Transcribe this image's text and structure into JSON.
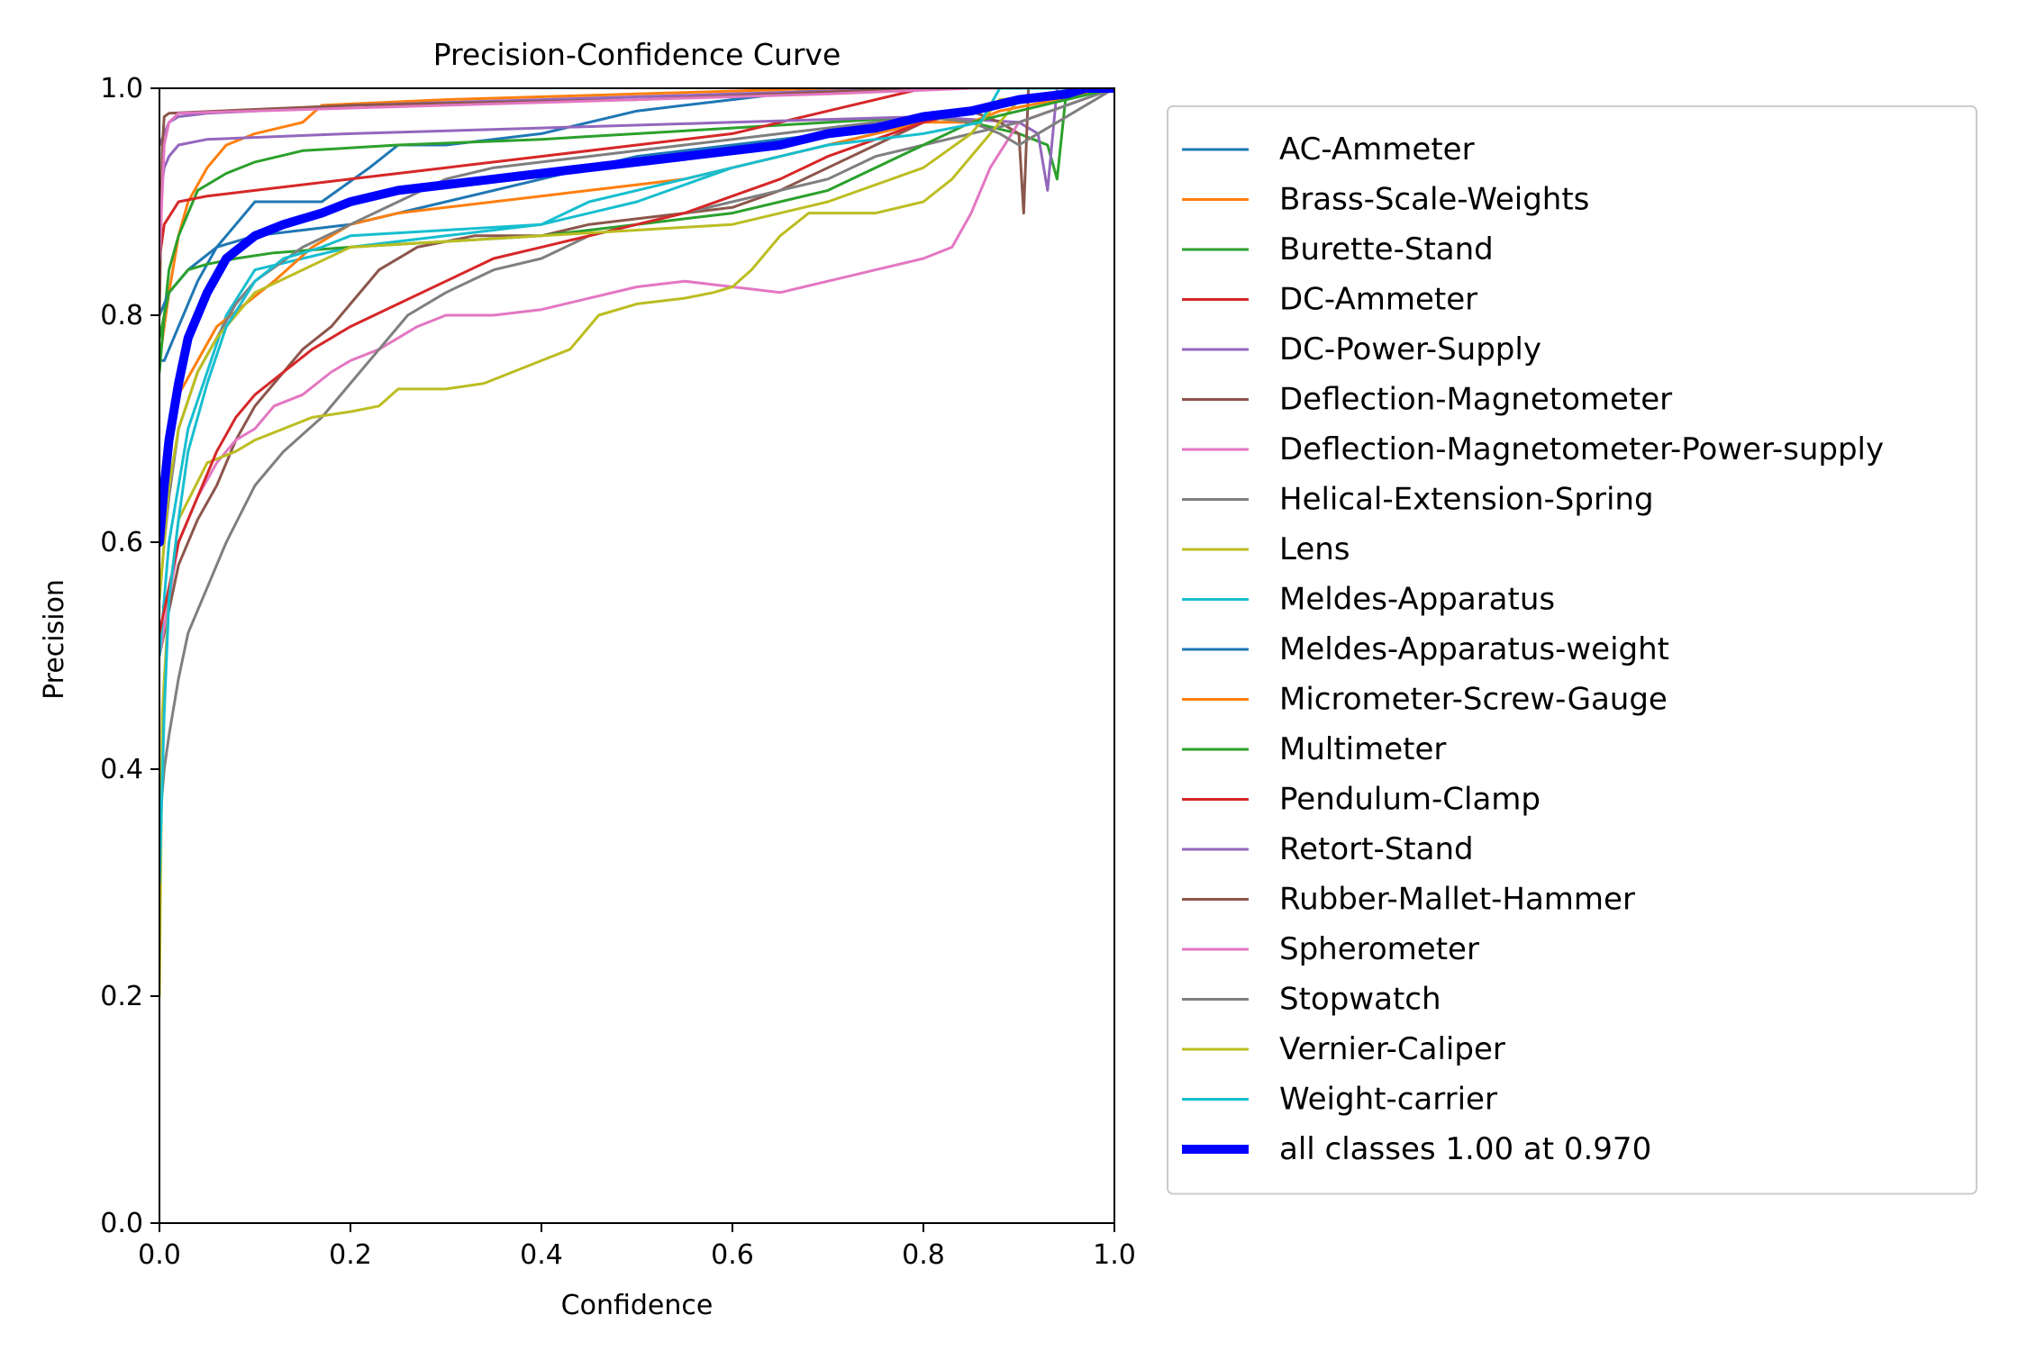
{
  "chart_data": {
    "type": "line",
    "title": "Precision-Confidence Curve",
    "xlabel": "Confidence",
    "ylabel": "Precision",
    "xlim": [
      0,
      1
    ],
    "ylim": [
      0,
      1
    ],
    "xticks": [
      0.0,
      0.2,
      0.4,
      0.6,
      0.8,
      1.0
    ],
    "yticks": [
      0.0,
      0.2,
      0.4,
      0.6,
      0.8,
      1.0
    ],
    "tick_labels_x": [
      "0.0",
      "0.2",
      "0.4",
      "0.6",
      "0.8",
      "1.0"
    ],
    "tick_labels_y": [
      "0.0",
      "0.2",
      "0.4",
      "0.6",
      "0.8",
      "1.0"
    ],
    "grid": false,
    "legend_position": "outside-right",
    "series": [
      {
        "name": "AC-Ammeter",
        "color": "#1f77b4",
        "width": 1.5,
        "x": [
          0,
          0.005,
          0.02,
          0.04,
          0.06,
          0.08,
          0.1,
          0.12,
          0.17,
          0.22,
          0.25,
          0.3,
          0.4,
          0.5,
          0.6,
          0.7,
          0.8,
          0.9,
          1.0
        ],
        "y": [
          0.76,
          0.76,
          0.79,
          0.83,
          0.86,
          0.88,
          0.9,
          0.9,
          0.9,
          0.93,
          0.95,
          0.95,
          0.96,
          0.98,
          0.99,
          1.0,
          1.0,
          1.0,
          1.0
        ]
      },
      {
        "name": "Brass-Scale-Weights",
        "color": "#ff7f0e",
        "width": 1.5,
        "x": [
          0,
          0.01,
          0.02,
          0.03,
          0.05,
          0.07,
          0.1,
          0.15,
          0.17,
          0.3,
          0.5,
          0.7,
          0.8,
          0.9,
          1.0
        ],
        "y": [
          0.76,
          0.82,
          0.87,
          0.9,
          0.93,
          0.95,
          0.96,
          0.97,
          0.985,
          0.99,
          0.995,
          1.0,
          1.0,
          1.0,
          1.0
        ]
      },
      {
        "name": "Burette-Stand",
        "color": "#2ca02c",
        "width": 1.5,
        "x": [
          0,
          0.005,
          0.01,
          0.02,
          0.04,
          0.07,
          0.1,
          0.15,
          0.25,
          0.4,
          0.6,
          0.8,
          0.85,
          0.9,
          0.93,
          0.94,
          0.95,
          1.0
        ],
        "y": [
          0.75,
          0.8,
          0.84,
          0.87,
          0.91,
          0.925,
          0.935,
          0.945,
          0.95,
          0.955,
          0.965,
          0.975,
          0.97,
          0.96,
          0.95,
          0.92,
          1.0,
          1.0
        ]
      },
      {
        "name": "DC-Ammeter",
        "color": "#d62728",
        "width": 1.5,
        "x": [
          0,
          0.005,
          0.02,
          0.05,
          0.1,
          0.2,
          0.3,
          0.4,
          0.5,
          0.6,
          0.7,
          0.8,
          0.9,
          1.0
        ],
        "y": [
          0.85,
          0.88,
          0.9,
          0.905,
          0.91,
          0.92,
          0.93,
          0.94,
          0.95,
          0.96,
          0.98,
          1.0,
          1.0,
          1.0
        ]
      },
      {
        "name": "DC-Power-Supply",
        "color": "#9467bd",
        "width": 1.5,
        "x": [
          0,
          0.005,
          0.01,
          0.02,
          0.05,
          0.2,
          0.4,
          0.6,
          0.8,
          0.9,
          0.92,
          0.93,
          0.94,
          1.0
        ],
        "y": [
          0.9,
          0.93,
          0.94,
          0.95,
          0.955,
          0.96,
          0.965,
          0.97,
          0.975,
          0.97,
          0.96,
          0.91,
          1.0,
          1.0
        ]
      },
      {
        "name": "Deflection-Magnetometer",
        "color": "#8c564b",
        "width": 1.5,
        "x": [
          0,
          0.01,
          0.02,
          0.04,
          0.06,
          0.08,
          0.1,
          0.12,
          0.15,
          0.18,
          0.2,
          0.23,
          0.27,
          0.3,
          0.33,
          0.36,
          0.4,
          0.45,
          0.5,
          0.55,
          0.6,
          0.65,
          0.7,
          0.75,
          0.8,
          0.85,
          0.88,
          0.9,
          0.905,
          0.91,
          1.0
        ],
        "y": [
          0.5,
          0.54,
          0.58,
          0.62,
          0.65,
          0.69,
          0.72,
          0.74,
          0.77,
          0.79,
          0.81,
          0.84,
          0.86,
          0.865,
          0.87,
          0.87,
          0.87,
          0.88,
          0.885,
          0.89,
          0.895,
          0.91,
          0.93,
          0.95,
          0.97,
          0.98,
          0.97,
          0.96,
          0.89,
          1.0,
          1.0
        ]
      },
      {
        "name": "Deflection-Magnetometer-Power-supply",
        "color": "#e377c2",
        "width": 1.5,
        "x": [
          0,
          0.01,
          0.02,
          0.04,
          0.06,
          0.08,
          0.1,
          0.12,
          0.15,
          0.18,
          0.2,
          0.23,
          0.27,
          0.3,
          0.35,
          0.4,
          0.45,
          0.5,
          0.55,
          0.6,
          0.65,
          0.7,
          0.75,
          0.8,
          0.83,
          0.85,
          0.87,
          0.9,
          1.0
        ],
        "y": [
          0.5,
          0.55,
          0.6,
          0.64,
          0.67,
          0.69,
          0.7,
          0.72,
          0.73,
          0.75,
          0.76,
          0.77,
          0.79,
          0.8,
          0.8,
          0.805,
          0.815,
          0.825,
          0.83,
          0.825,
          0.82,
          0.83,
          0.84,
          0.85,
          0.86,
          0.89,
          0.93,
          0.97,
          1.0
        ]
      },
      {
        "name": "Helical-Extension-Spring",
        "color": "#7f7f7f",
        "width": 1.5,
        "x": [
          0,
          0.005,
          0.01,
          0.02,
          0.03,
          0.05,
          0.07,
          0.1,
          0.13,
          0.17,
          0.2,
          0.23,
          0.26,
          0.3,
          0.35,
          0.4,
          0.45,
          0.5,
          0.55,
          0.6,
          0.65,
          0.7,
          0.75,
          0.8,
          0.85,
          0.9,
          1.0
        ],
        "y": [
          0.35,
          0.4,
          0.43,
          0.48,
          0.52,
          0.56,
          0.6,
          0.65,
          0.68,
          0.71,
          0.74,
          0.77,
          0.8,
          0.82,
          0.84,
          0.85,
          0.87,
          0.88,
          0.89,
          0.9,
          0.91,
          0.92,
          0.94,
          0.95,
          0.96,
          0.97,
          1.0
        ]
      },
      {
        "name": "Lens",
        "color": "#bcbd22",
        "width": 1.5,
        "x": [
          0,
          0.003,
          0.01,
          0.02,
          0.05,
          0.08,
          0.1,
          0.13,
          0.16,
          0.2,
          0.23,
          0.25,
          0.3,
          0.34,
          0.37,
          0.4,
          0.43,
          0.46,
          0.5,
          0.55,
          0.58,
          0.6,
          0.62,
          0.65,
          0.68,
          0.72,
          0.75,
          0.8,
          0.83,
          0.86,
          0.88,
          0.9,
          1.0
        ],
        "y": [
          0.2,
          0.45,
          0.55,
          0.62,
          0.67,
          0.68,
          0.69,
          0.7,
          0.71,
          0.715,
          0.72,
          0.735,
          0.735,
          0.74,
          0.75,
          0.76,
          0.77,
          0.8,
          0.81,
          0.815,
          0.82,
          0.825,
          0.84,
          0.87,
          0.89,
          0.89,
          0.89,
          0.9,
          0.92,
          0.95,
          0.97,
          0.99,
          1.0
        ]
      },
      {
        "name": "Meldes-Apparatus",
        "color": "#17becf",
        "width": 1.5,
        "x": [
          0,
          0.005,
          0.01,
          0.02,
          0.03,
          0.05,
          0.07,
          0.1,
          0.15,
          0.2,
          0.3,
          0.4,
          0.5,
          0.6,
          0.7,
          0.8,
          0.9,
          1.0
        ],
        "y": [
          0.5,
          0.55,
          0.6,
          0.65,
          0.7,
          0.75,
          0.8,
          0.84,
          0.85,
          0.86,
          0.87,
          0.88,
          0.9,
          0.93,
          0.95,
          0.97,
          0.99,
          1.0
        ]
      },
      {
        "name": "Meldes-Apparatus-weight",
        "color": "#1f77b4",
        "width": 1.5,
        "x": [
          0,
          0.01,
          0.03,
          0.06,
          0.1,
          0.2,
          0.3,
          0.4,
          0.5,
          0.6,
          0.7,
          0.8,
          0.9,
          1.0
        ],
        "y": [
          0.8,
          0.82,
          0.84,
          0.86,
          0.87,
          0.88,
          0.9,
          0.92,
          0.94,
          0.95,
          0.96,
          0.97,
          0.99,
          1.0
        ]
      },
      {
        "name": "Micrometer-Screw-Gauge",
        "color": "#ff7f0e",
        "width": 1.5,
        "x": [
          0,
          0.005,
          0.01,
          0.02,
          0.04,
          0.06,
          0.09,
          0.12,
          0.16,
          0.2,
          0.25,
          0.3,
          0.35,
          0.4,
          0.45,
          0.5,
          0.55,
          0.6,
          0.65,
          0.7,
          0.75,
          0.8,
          0.85,
          0.88,
          1.0
        ],
        "y": [
          0.6,
          0.65,
          0.7,
          0.73,
          0.76,
          0.79,
          0.81,
          0.83,
          0.86,
          0.88,
          0.89,
          0.895,
          0.9,
          0.905,
          0.91,
          0.915,
          0.92,
          0.93,
          0.94,
          0.95,
          0.96,
          0.97,
          0.97,
          0.98,
          1.0
        ]
      },
      {
        "name": "Multimeter",
        "color": "#2ca02c",
        "width": 1.5,
        "x": [
          0,
          0.005,
          0.01,
          0.02,
          0.03,
          0.05,
          0.08,
          0.12,
          0.2,
          0.3,
          0.4,
          0.5,
          0.6,
          0.7,
          0.8,
          0.85,
          0.9,
          1.0
        ],
        "y": [
          0.78,
          0.8,
          0.82,
          0.83,
          0.84,
          0.845,
          0.85,
          0.855,
          0.86,
          0.865,
          0.87,
          0.88,
          0.89,
          0.91,
          0.95,
          0.97,
          0.98,
          1.0
        ]
      },
      {
        "name": "Pendulum-Clamp",
        "color": "#d62728",
        "width": 1.5,
        "x": [
          0,
          0.01,
          0.02,
          0.04,
          0.06,
          0.08,
          0.1,
          0.13,
          0.16,
          0.2,
          0.25,
          0.3,
          0.35,
          0.4,
          0.45,
          0.5,
          0.55,
          0.6,
          0.65,
          0.7,
          0.75,
          0.8,
          0.85,
          0.9,
          1.0
        ],
        "y": [
          0.52,
          0.56,
          0.6,
          0.64,
          0.68,
          0.71,
          0.73,
          0.75,
          0.77,
          0.79,
          0.81,
          0.83,
          0.85,
          0.86,
          0.87,
          0.88,
          0.89,
          0.905,
          0.92,
          0.94,
          0.955,
          0.97,
          0.98,
          0.99,
          1.0
        ]
      },
      {
        "name": "Retort-Stand",
        "color": "#9467bd",
        "width": 1.5,
        "x": [
          0,
          0.005,
          0.01,
          0.02,
          0.05,
          0.1,
          0.2,
          0.4,
          0.6,
          0.8,
          1.0
        ],
        "y": [
          0.95,
          0.96,
          0.97,
          0.975,
          0.978,
          0.98,
          0.985,
          0.99,
          0.995,
          1.0,
          1.0
        ]
      },
      {
        "name": "Rubber-Mallet-Hammer",
        "color": "#8c564b",
        "width": 1.5,
        "x": [
          0,
          0.003,
          0.005,
          0.01,
          0.2,
          0.5,
          0.8,
          1.0
        ],
        "y": [
          0.8,
          0.95,
          0.975,
          0.978,
          0.985,
          0.99,
          1.0,
          1.0
        ]
      },
      {
        "name": "Spherometer",
        "color": "#e377c2",
        "width": 1.5,
        "x": [
          0,
          0.005,
          0.01,
          0.02,
          0.1,
          0.3,
          0.5,
          0.7,
          0.85,
          1.0
        ],
        "y": [
          0.85,
          0.95,
          0.97,
          0.978,
          0.98,
          0.985,
          0.99,
          0.995,
          1.0,
          1.0
        ]
      },
      {
        "name": "Stopwatch",
        "color": "#7f7f7f",
        "width": 1.5,
        "x": [
          0,
          0.005,
          0.01,
          0.02,
          0.04,
          0.06,
          0.08,
          0.1,
          0.15,
          0.2,
          0.25,
          0.3,
          0.35,
          0.4,
          0.45,
          0.5,
          0.55,
          0.6,
          0.65,
          0.7,
          0.75,
          0.8,
          0.85,
          0.88,
          0.9,
          1.0
        ],
        "y": [
          0.55,
          0.6,
          0.64,
          0.7,
          0.75,
          0.78,
          0.81,
          0.83,
          0.86,
          0.88,
          0.9,
          0.92,
          0.93,
          0.935,
          0.94,
          0.945,
          0.95,
          0.955,
          0.96,
          0.965,
          0.97,
          0.975,
          0.97,
          0.96,
          0.95,
          1.0
        ]
      },
      {
        "name": "Vernier-Caliper",
        "color": "#bcbd22",
        "width": 1.5,
        "x": [
          0,
          0.005,
          0.01,
          0.02,
          0.04,
          0.06,
          0.08,
          0.1,
          0.15,
          0.2,
          0.3,
          0.4,
          0.5,
          0.6,
          0.7,
          0.8,
          0.85,
          0.88,
          1.0
        ],
        "y": [
          0.55,
          0.6,
          0.65,
          0.7,
          0.75,
          0.78,
          0.8,
          0.82,
          0.84,
          0.86,
          0.865,
          0.87,
          0.875,
          0.88,
          0.9,
          0.93,
          0.96,
          0.99,
          1.0
        ]
      },
      {
        "name": "Weight-carrier",
        "color": "#17becf",
        "width": 1.5,
        "x": [
          0,
          0.005,
          0.01,
          0.02,
          0.03,
          0.05,
          0.07,
          0.1,
          0.13,
          0.17,
          0.2,
          0.3,
          0.4,
          0.45,
          0.5,
          0.6,
          0.7,
          0.8,
          0.86,
          0.88,
          1.0
        ],
        "y": [
          0.3,
          0.45,
          0.55,
          0.62,
          0.68,
          0.74,
          0.79,
          0.83,
          0.85,
          0.86,
          0.87,
          0.875,
          0.88,
          0.9,
          0.91,
          0.93,
          0.95,
          0.96,
          0.97,
          1.0,
          1.0
        ]
      },
      {
        "name": "all classes 1.00 at 0.970",
        "color": "#0000ff",
        "width": 5,
        "x": [
          0,
          0.005,
          0.01,
          0.02,
          0.03,
          0.05,
          0.07,
          0.1,
          0.13,
          0.17,
          0.2,
          0.25,
          0.3,
          0.35,
          0.4,
          0.45,
          0.5,
          0.55,
          0.6,
          0.65,
          0.7,
          0.75,
          0.8,
          0.85,
          0.9,
          0.95,
          0.97,
          1.0
        ],
        "y": [
          0.6,
          0.65,
          0.69,
          0.74,
          0.78,
          0.82,
          0.85,
          0.87,
          0.88,
          0.89,
          0.9,
          0.91,
          0.915,
          0.92,
          0.925,
          0.93,
          0.935,
          0.94,
          0.945,
          0.95,
          0.96,
          0.965,
          0.975,
          0.98,
          0.99,
          0.995,
          1.0,
          1.0
        ]
      }
    ]
  }
}
